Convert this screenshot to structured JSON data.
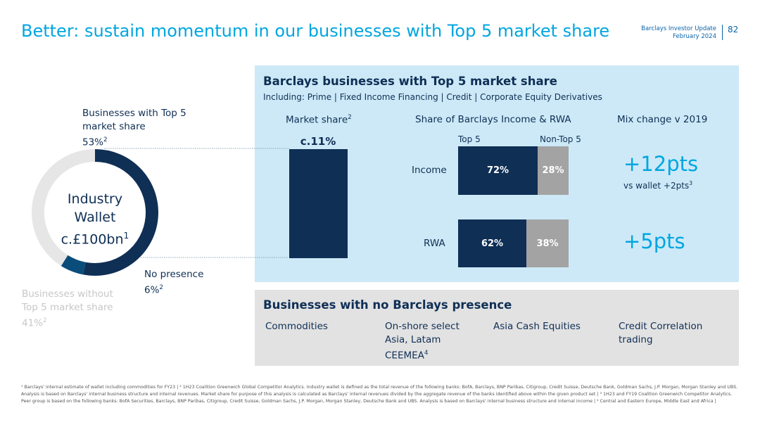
{
  "title": "Better: sustain momentum in our businesses with Top 5 market share",
  "header": {
    "org_line": "Barclays Investor Update",
    "date_line": "February 2024",
    "page_number": "82"
  },
  "donut": {
    "center_line1": "Industry",
    "center_line2": "Wallet",
    "center_line3": "c.£100bn",
    "center_sup": "1",
    "segments": [
      {
        "name": "Businesses with Top 5 market share",
        "percent": 53,
        "color": "#0f2f55"
      },
      {
        "name": "No presence",
        "percent": 6,
        "color": "#0a4d7a"
      },
      {
        "name": "Businesses without Top 5 market share",
        "percent": 41,
        "color": "#e6e6e6"
      }
    ],
    "label_top5_line1": "Businesses with Top 5",
    "label_top5_line2": "market share",
    "label_top5_value": "53%",
    "label_top5_sup": "2",
    "label_nopres_line1": "No presence",
    "label_nopres_value": "6%",
    "label_nopres_sup": "2",
    "label_without_line1": "Businesses without",
    "label_without_line2": "Top 5 market share",
    "label_without_value": "41%",
    "label_without_sup": "2"
  },
  "top_panel": {
    "title": "Barclays businesses with Top 5 market share",
    "subtitle": "Including: Prime | Fixed Income Financing | Credit | Corporate Equity Derivatives",
    "col_market_share": "Market share",
    "col_market_share_sup": "2",
    "col_income_rwa": "Share of Barclays Income & RWA",
    "col_mix": "Mix change v 2019",
    "market_share_value": "c.11%",
    "legend_top5": "Top 5",
    "legend_nontop5": "Non-Top 5",
    "rows": [
      {
        "label": "Income",
        "top5": "72%",
        "non_top5": "28%",
        "top5_value": 72,
        "mix": "+12pts",
        "mix_note": "vs wallet +2pts",
        "mix_note_sup": "3"
      },
      {
        "label": "RWA",
        "top5": "62%",
        "non_top5": "38%",
        "top5_value": 62,
        "mix": "+5pts"
      }
    ]
  },
  "bottom_panel": {
    "title": "Businesses with no Barclays presence",
    "items": [
      {
        "line1": "Commodities"
      },
      {
        "line1": "On-shore select",
        "line2": "Asia, Latam",
        "line3": "CEEMEA",
        "sup": "4"
      },
      {
        "line1": "Asia Cash Equities"
      },
      {
        "line1": "Credit Correlation",
        "line2": "trading"
      }
    ]
  },
  "footnote": "¹ Barclays' internal estimate of wallet including commodities for FY23 | ² 1H23 Coalition Greenwich Global Competitor Analytics. Industry wallet is defined as the total revenue of the following banks: BofA, Barclays, BNP Paribas, Citigroup, Credit Suisse, Deutsche Bank, Goldman Sachs, J.P. Morgan, Morgan Stanley and UBS. Analysis is based on Barclays' internal business structure and internal revenues. Market share for purpose of this analysis is calculated as Barclays' internal revenues divided by the aggregate revenue of the banks identified above within the given product set | ³ 1H23 and FY19 Coalition Greenwich Competitor Analytics. Peer group is based on the following banks: BofA Securities, Barclays, BNP Paribas, Citigroup, Credit Suisse, Goldman Sachs, J.P. Morgan, Morgan Stanley, Deutsche Bank and UBS. Analysis is based on Barclays' internal business structure and internal income | ⁴ Central and Eastern Europe, Middle East and Africa |"
}
